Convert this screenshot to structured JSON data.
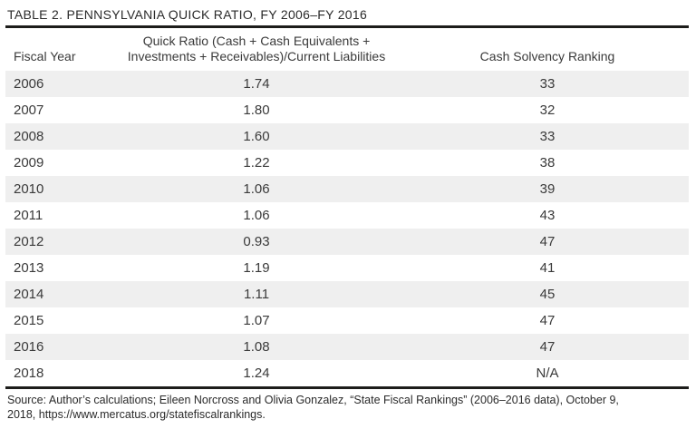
{
  "title": "TABLE 2. PENNSYLVANIA QUICK RATIO, FY 2006–FY 2016",
  "header": {
    "fiscal_year": "Fiscal Year",
    "quick_ratio_line1": "Quick Ratio (Cash + Cash Equivalents +",
    "quick_ratio_line2": "Investments + Receivables)/Current Liabilities",
    "cash_solvency_ranking": "Cash Solvency Ranking"
  },
  "rows": [
    {
      "fiscal_year": "2006",
      "quick_ratio": "1.74",
      "ranking": "33"
    },
    {
      "fiscal_year": "2007",
      "quick_ratio": "1.80",
      "ranking": "32"
    },
    {
      "fiscal_year": "2008",
      "quick_ratio": "1.60",
      "ranking": "33"
    },
    {
      "fiscal_year": "2009",
      "quick_ratio": "1.22",
      "ranking": "38"
    },
    {
      "fiscal_year": "2010",
      "quick_ratio": "1.06",
      "ranking": "39"
    },
    {
      "fiscal_year": "2011",
      "quick_ratio": "1.06",
      "ranking": "43"
    },
    {
      "fiscal_year": "2012",
      "quick_ratio": "0.93",
      "ranking": "47"
    },
    {
      "fiscal_year": "2013",
      "quick_ratio": "1.19",
      "ranking": "41"
    },
    {
      "fiscal_year": "2014",
      "quick_ratio": "1.11",
      "ranking": "45"
    },
    {
      "fiscal_year": "2015",
      "quick_ratio": "1.07",
      "ranking": "47"
    },
    {
      "fiscal_year": "2016",
      "quick_ratio": "1.08",
      "ranking": "47"
    },
    {
      "fiscal_year": "2018",
      "quick_ratio": "1.24",
      "ranking": "N/A"
    }
  ],
  "source": {
    "line1": "Source: Author’s calculations; Eileen Norcross and Olivia Gonzalez, “State Fiscal Rankings” (2006–2016 data), October 9,",
    "line2": "2018, https://www.mercatus.org/statefiscalrankings."
  },
  "colors": {
    "row_stripe": "#efefef",
    "rule": "#1d1d1b",
    "text": "#3a3a3a"
  },
  "chart_data": {
    "type": "table",
    "title": "TABLE 2. PENNSYLVANIA QUICK RATIO, FY 2006–FY 2016",
    "columns": [
      "Fiscal Year",
      "Quick Ratio (Cash + Cash Equivalents + Investments + Receivables)/Current Liabilities",
      "Cash Solvency Ranking"
    ],
    "fiscal_years": [
      "2006",
      "2007",
      "2008",
      "2009",
      "2010",
      "2011",
      "2012",
      "2013",
      "2014",
      "2015",
      "2016",
      "2018"
    ],
    "quick_ratio": [
      1.74,
      1.8,
      1.6,
      1.22,
      1.06,
      1.06,
      0.93,
      1.19,
      1.11,
      1.07,
      1.08,
      1.24
    ],
    "cash_solvency_ranking": [
      33,
      32,
      33,
      38,
      39,
      43,
      47,
      41,
      45,
      47,
      47,
      "N/A"
    ],
    "notes": "Source: Author’s calculations; Eileen Norcross and Olivia Gonzalez, “State Fiscal Rankings” (2006–2016 data), October 9, 2018, https://www.mercatus.org/statefiscalrankings."
  }
}
